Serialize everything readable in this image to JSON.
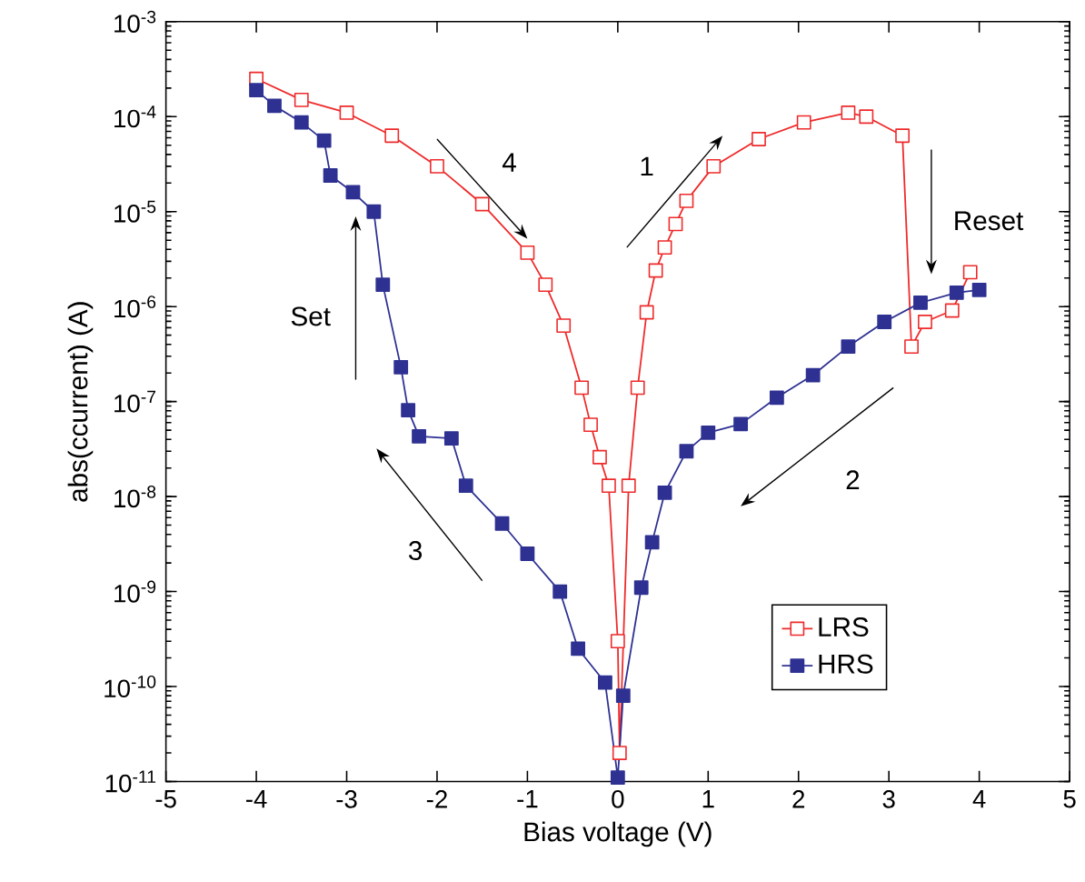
{
  "chart_data": {
    "type": "line",
    "xlabel": "Bias voltage (V)",
    "ylabel": "abs(ccurrent) (A)",
    "log": "y",
    "xlim": [
      -5,
      5
    ],
    "ylim": [
      1e-11,
      0.001
    ],
    "xticks": [
      -5,
      -4,
      -3,
      -2,
      -1,
      0,
      1,
      2,
      3,
      4,
      5
    ],
    "yticks": [
      {
        "value": 1e-11,
        "label": "10$^{-11}$"
      },
      {
        "value": 1e-10,
        "label": "10$^{-10}$"
      },
      {
        "value": 1e-09,
        "label": "10$^{-9}$"
      },
      {
        "value": 1e-08,
        "label": "10$^{-8}$"
      },
      {
        "value": 1e-07,
        "label": "10$^{-7}$"
      },
      {
        "value": 1e-06,
        "label": "10$^{-6}$"
      },
      {
        "value": 1e-05,
        "label": "10$^{-5}$"
      },
      {
        "value": 0.0001,
        "label": "10$^{-4}$"
      },
      {
        "value": 0.001,
        "label": "10$^{-3}$"
      }
    ],
    "marker": "square",
    "line_style": "solid",
    "legend": "bottom right",
    "grid": false,
    "annotations": [
      "4",
      "1",
      "Reset",
      "2",
      "3",
      "Set"
    ],
    "series": [
      {
        "name": "LRS",
        "color": "#ee2a2a",
        "x": [
          -4,
          -3.5,
          -3,
          -2.5,
          -2,
          -1.5,
          -1,
          -0.8,
          -0.6,
          -0.4,
          -0.3,
          -0.2,
          -0.1,
          0,
          0.02,
          0.12,
          0.22,
          0.32,
          0.42,
          0.52,
          0.64,
          0.76,
          1.06,
          1.56,
          2.06,
          2.55,
          2.75,
          3.15,
          3.25,
          3.4,
          3.7,
          3.9
        ],
        "values": [
          0.00025,
          0.00015,
          0.00011,
          6.3e-05,
          3e-05,
          1.2e-05,
          3.7e-06,
          1.7e-06,
          6.3e-07,
          1.4e-07,
          5.7e-08,
          2.6e-08,
          1.3e-08,
          3e-10,
          2e-11,
          1.3e-08,
          1.4e-07,
          8.7e-07,
          2.4e-06,
          4.2e-06,
          7.4e-06,
          1.3e-05,
          3e-05,
          5.8e-05,
          8.7e-05,
          0.00011,
          0.0001,
          6.3e-05,
          3.8e-07,
          6.9e-07,
          9.1e-07,
          2.3e-06
        ]
      },
      {
        "name": "HRS",
        "color": "#2e3192",
        "x": [
          -4,
          -3.8,
          -3.5,
          -3.25,
          -3.18,
          -2.93,
          -2.7,
          -2.6,
          -2.4,
          -2.32,
          -2.2,
          -1.84,
          -1.68,
          -1.28,
          -1.0,
          -0.64,
          -0.44,
          -0.14,
          0,
          0.06,
          0.26,
          0.38,
          0.52,
          0.76,
          1.0,
          1.36,
          1.76,
          2.16,
          2.55,
          2.95,
          3.35,
          3.75,
          4.0
        ],
        "values": [
          0.00019,
          0.00013,
          8.7e-05,
          5.6e-05,
          2.4e-05,
          1.6e-05,
          1e-05,
          1.7e-06,
          2.3e-07,
          8.1e-08,
          4.3e-08,
          4.1e-08,
          1.3e-08,
          5.2e-09,
          2.5e-09,
          1e-09,
          2.5e-10,
          1.1e-10,
          1.1e-11,
          8e-11,
          1.1e-09,
          3.3e-09,
          1.1e-08,
          3e-08,
          4.7e-08,
          5.8e-08,
          1.1e-07,
          1.9e-07,
          3.8e-07,
          6.9e-07,
          1.1e-06,
          1.4e-06,
          1.5e-06
        ]
      }
    ]
  }
}
